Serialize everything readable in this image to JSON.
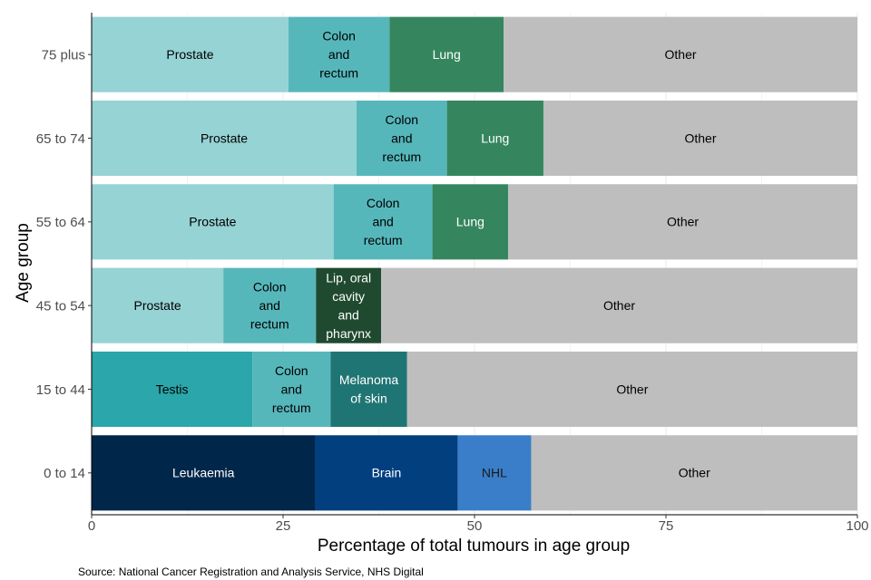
{
  "chart_data": {
    "type": "bar",
    "orientation": "horizontal",
    "stacked": true,
    "title": "",
    "xlabel": "Percentage of total tumours in age group",
    "ylabel": "Age group",
    "xlim": [
      0,
      100
    ],
    "xticks": [
      0,
      25,
      50,
      75,
      100
    ],
    "grid": true,
    "legend": "none",
    "caption": "Source: National Cancer Registration and Analysis Service, NHS Digital",
    "categories": [
      "0 to 14",
      "15 to 44",
      "45 to 54",
      "55 to 64",
      "65 to 74",
      "75 plus"
    ],
    "colors": {
      "Prostate": "#96d3d5",
      "Colon and rectum": "#56b7bb",
      "Lung": "#35865f",
      "Other": "#bebebe",
      "Lip, oral cavity and pharynx": "#1f4a2f",
      "Testis": "#2ba6aa",
      "Melanoma of skin": "#1f7574",
      "Leukaemia": "#00264a",
      "Brain": "#013f7f",
      "NHL": "#3a7ec9"
    },
    "rows": [
      {
        "group": "0 to 14",
        "segments": [
          {
            "name": "Leukaemia",
            "label": [
              "Leukaemia"
            ],
            "value": 29.2,
            "text_color": "#ffffff"
          },
          {
            "name": "Brain",
            "label": [
              "Brain"
            ],
            "value": 18.6,
            "text_color": "#ffffff"
          },
          {
            "name": "NHL",
            "label": [
              "NHL"
            ],
            "value": 9.6,
            "text_color": "#1a1a1a"
          },
          {
            "name": "Other",
            "label": [
              "Other"
            ],
            "value": 42.6,
            "text_color": "#000000"
          }
        ]
      },
      {
        "group": "15 to 44",
        "segments": [
          {
            "name": "Testis",
            "label": [
              "Testis"
            ],
            "value": 21.0,
            "text_color": "#000000"
          },
          {
            "name": "Colon and rectum",
            "label": [
              "Colon",
              "and",
              "rectum"
            ],
            "value": 10.2,
            "text_color": "#000000"
          },
          {
            "name": "Melanoma of skin",
            "label": [
              "Melanoma",
              "of skin"
            ],
            "value": 10.0,
            "text_color": "#ffffff"
          },
          {
            "name": "Other",
            "label": [
              "Other"
            ],
            "value": 58.8,
            "text_color": "#000000"
          }
        ]
      },
      {
        "group": "45 to 54",
        "segments": [
          {
            "name": "Prostate",
            "label": [
              "Prostate"
            ],
            "value": 17.2,
            "text_color": "#000000"
          },
          {
            "name": "Colon and rectum",
            "label": [
              "Colon",
              "and",
              "rectum"
            ],
            "value": 12.1,
            "text_color": "#000000"
          },
          {
            "name": "Lip, oral cavity and pharynx",
            "label": [
              "Lip, oral",
              "cavity",
              "and",
              "pharynx"
            ],
            "value": 8.5,
            "text_color": "#ffffff"
          },
          {
            "name": "Other",
            "label": [
              "Other"
            ],
            "value": 62.2,
            "text_color": "#000000"
          }
        ]
      },
      {
        "group": "55 to 64",
        "segments": [
          {
            "name": "Prostate",
            "label": [
              "Prostate"
            ],
            "value": 31.6,
            "text_color": "#000000"
          },
          {
            "name": "Colon and rectum",
            "label": [
              "Colon",
              "and",
              "rectum"
            ],
            "value": 12.9,
            "text_color": "#000000"
          },
          {
            "name": "Lung",
            "label": [
              "Lung"
            ],
            "value": 9.9,
            "text_color": "#ffffff"
          },
          {
            "name": "Other",
            "label": [
              "Other"
            ],
            "value": 45.6,
            "text_color": "#000000"
          }
        ]
      },
      {
        "group": "65 to 74",
        "segments": [
          {
            "name": "Prostate",
            "label": [
              "Prostate"
            ],
            "value": 34.6,
            "text_color": "#000000"
          },
          {
            "name": "Colon and rectum",
            "label": [
              "Colon",
              "and",
              "rectum"
            ],
            "value": 11.8,
            "text_color": "#000000"
          },
          {
            "name": "Lung",
            "label": [
              "Lung"
            ],
            "value": 12.6,
            "text_color": "#ffffff"
          },
          {
            "name": "Other",
            "label": [
              "Other"
            ],
            "value": 41.0,
            "text_color": "#000000"
          }
        ]
      },
      {
        "group": "75 plus",
        "segments": [
          {
            "name": "Prostate",
            "label": [
              "Prostate"
            ],
            "value": 25.7,
            "text_color": "#000000"
          },
          {
            "name": "Colon and rectum",
            "label": [
              "Colon",
              "and",
              "rectum"
            ],
            "value": 13.2,
            "text_color": "#000000"
          },
          {
            "name": "Lung",
            "label": [
              "Lung"
            ],
            "value": 14.9,
            "text_color": "#ffffff"
          },
          {
            "name": "Other",
            "label": [
              "Other"
            ],
            "value": 46.2,
            "text_color": "#000000"
          }
        ]
      }
    ]
  }
}
